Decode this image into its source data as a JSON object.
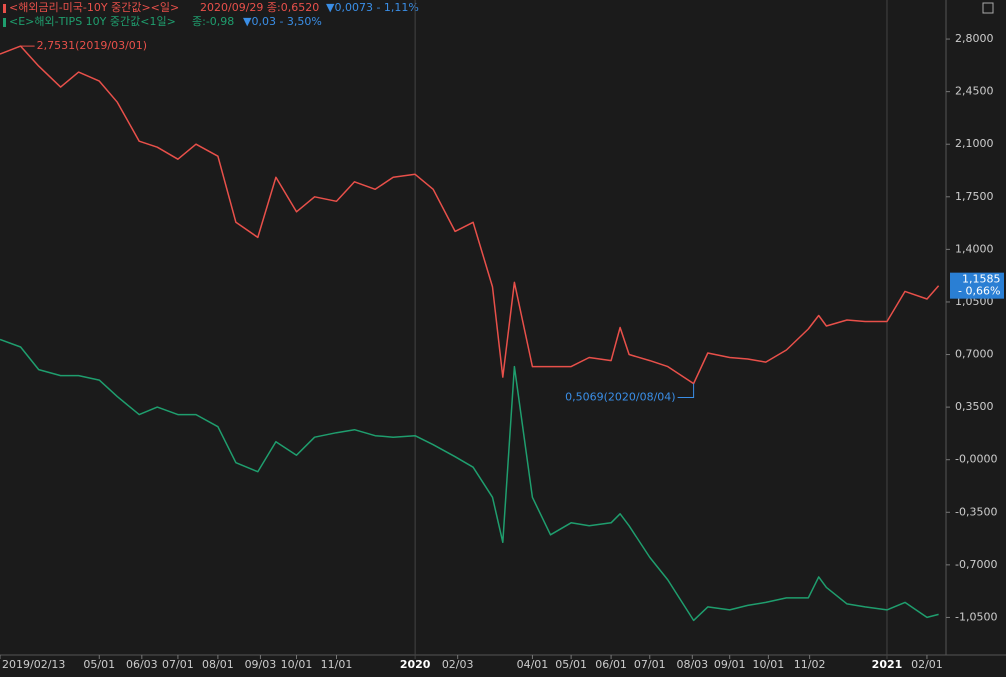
{
  "chart_data": {
    "type": "line",
    "x": [
      "2019/02/13",
      "2019/03/01",
      "2019/03/15",
      "2019/04/01",
      "2019/04/15",
      "2019/05/01",
      "2019/05/15",
      "2019/06/01",
      "2019/06/15",
      "2019/07/01",
      "2019/07/15",
      "2019/08/01",
      "2019/08/15",
      "2019/09/01",
      "2019/09/15",
      "2019/10/01",
      "2019/10/15",
      "2019/11/01",
      "2019/11/15",
      "2019/12/01",
      "2019/12/15",
      "2020/01/01",
      "2020/01/15",
      "2020/02/01",
      "2020/02/15",
      "2020/03/01",
      "2020/03/09",
      "2020/03/18",
      "2020/04/01",
      "2020/04/15",
      "2020/05/01",
      "2020/05/15",
      "2020/06/01",
      "2020/06/08",
      "2020/06/15",
      "2020/07/01",
      "2020/07/15",
      "2020/08/04",
      "2020/08/15",
      "2020/09/01",
      "2020/09/15",
      "2020/09/29",
      "2020/10/15",
      "2020/11/01",
      "2020/11/09",
      "2020/11/15",
      "2020/12/01",
      "2020/12/15",
      "2021/01/01",
      "2021/01/15",
      "2021/02/01",
      "2021/02/10"
    ],
    "series": [
      {
        "name": "<해외금리-미국-10Y 중간값><일>",
        "info": "2020/09/29 종:0,6520",
        "change": "▼0,0073  - 1,11%",
        "color": "#e8504a",
        "values": [
          2.7,
          2.7531,
          2.62,
          2.48,
          2.58,
          2.52,
          2.38,
          2.12,
          2.08,
          2.0,
          2.1,
          2.02,
          1.58,
          1.48,
          1.88,
          1.65,
          1.75,
          1.72,
          1.85,
          1.8,
          1.88,
          1.9,
          1.8,
          1.52,
          1.58,
          1.15,
          0.55,
          1.18,
          0.62,
          0.62,
          0.62,
          0.68,
          0.66,
          0.88,
          0.7,
          0.66,
          0.62,
          0.5069,
          0.71,
          0.68,
          0.67,
          0.65,
          0.73,
          0.87,
          0.96,
          0.89,
          0.93,
          0.92,
          0.92,
          1.12,
          1.07,
          1.1585
        ]
      },
      {
        "name": "<E>해외-TIPS 10Y 중간값<1일>",
        "info": "종:-0,98",
        "change": "▼0,03  - 3,50%",
        "color": "#1f9e6e",
        "values": [
          0.8,
          0.75,
          0.6,
          0.56,
          0.56,
          0.53,
          0.42,
          0.3,
          0.35,
          0.3,
          0.3,
          0.22,
          -0.02,
          -0.08,
          0.12,
          0.03,
          0.15,
          0.18,
          0.2,
          0.16,
          0.15,
          0.16,
          0.1,
          0.02,
          -0.05,
          -0.25,
          -0.55,
          0.62,
          -0.25,
          -0.5,
          -0.42,
          -0.44,
          -0.42,
          -0.36,
          -0.44,
          -0.65,
          -0.8,
          -1.07,
          -0.98,
          -1.0,
          -0.97,
          -0.95,
          -0.92,
          -0.92,
          -0.78,
          -0.85,
          -0.96,
          -0.98,
          -1.0,
          -0.95,
          -1.05,
          -1.03
        ]
      }
    ],
    "xlim": [
      "2019/02/13",
      "2021/02/15"
    ],
    "xticks": [
      {
        "value": "2019/02/13",
        "label": "2019/02/13"
      },
      {
        "value": "2019/05/01",
        "label": "05/01"
      },
      {
        "value": "2019/06/03",
        "label": "06/03"
      },
      {
        "value": "2019/07/01",
        "label": "07/01"
      },
      {
        "value": "2019/08/01",
        "label": "08/01"
      },
      {
        "value": "2019/09/03",
        "label": "09/03"
      },
      {
        "value": "2019/10/01",
        "label": "10/01"
      },
      {
        "value": "2019/11/01",
        "label": "11/01"
      },
      {
        "value": "2020/01/01",
        "label": "2020"
      },
      {
        "value": "2020/02/03",
        "label": "02/03"
      },
      {
        "value": "2020/04/01",
        "label": "04/01"
      },
      {
        "value": "2020/05/01",
        "label": "05/01"
      },
      {
        "value": "2020/06/01",
        "label": "06/01"
      },
      {
        "value": "2020/07/01",
        "label": "07/01"
      },
      {
        "value": "2020/08/03",
        "label": "08/03"
      },
      {
        "value": "2020/09/01",
        "label": "09/01"
      },
      {
        "value": "2020/10/01",
        "label": "10/01"
      },
      {
        "value": "2020/11/02",
        "label": "11/02"
      },
      {
        "value": "2021/01/01",
        "label": "2021"
      },
      {
        "value": "2021/02/01",
        "label": "02/01"
      }
    ],
    "ylim": [
      -1.3,
      3.06
    ],
    "yticks": [
      {
        "value": 2.8,
        "label": "2,8000"
      },
      {
        "value": 2.45,
        "label": "2,4500"
      },
      {
        "value": 2.1,
        "label": "2,1000"
      },
      {
        "value": 1.75,
        "label": "1,7500"
      },
      {
        "value": 1.4,
        "label": "1,4000"
      },
      {
        "value": 1.05,
        "label": "1,0500"
      },
      {
        "value": 0.7,
        "label": "0,7000"
      },
      {
        "value": 0.35,
        "label": "0,3500"
      },
      {
        "value": 0,
        "label": "-0,0000"
      },
      {
        "value": -0.35,
        "label": "-0,3500"
      },
      {
        "value": -0.7,
        "label": "-0,7000"
      },
      {
        "value": -1.05,
        "label": "-1,0500"
      }
    ],
    "annotations": [
      {
        "text": "2,7531(2019/03/01)",
        "x": "2019/03/01",
        "y": 2.7531
      },
      {
        "text": "0,5069(2020/08/04)",
        "x": "2020/08/04",
        "y": 0.5069
      }
    ],
    "last_value": {
      "value": 1.1585,
      "label": "1,1585",
      "change": "- 0,66%"
    }
  }
}
